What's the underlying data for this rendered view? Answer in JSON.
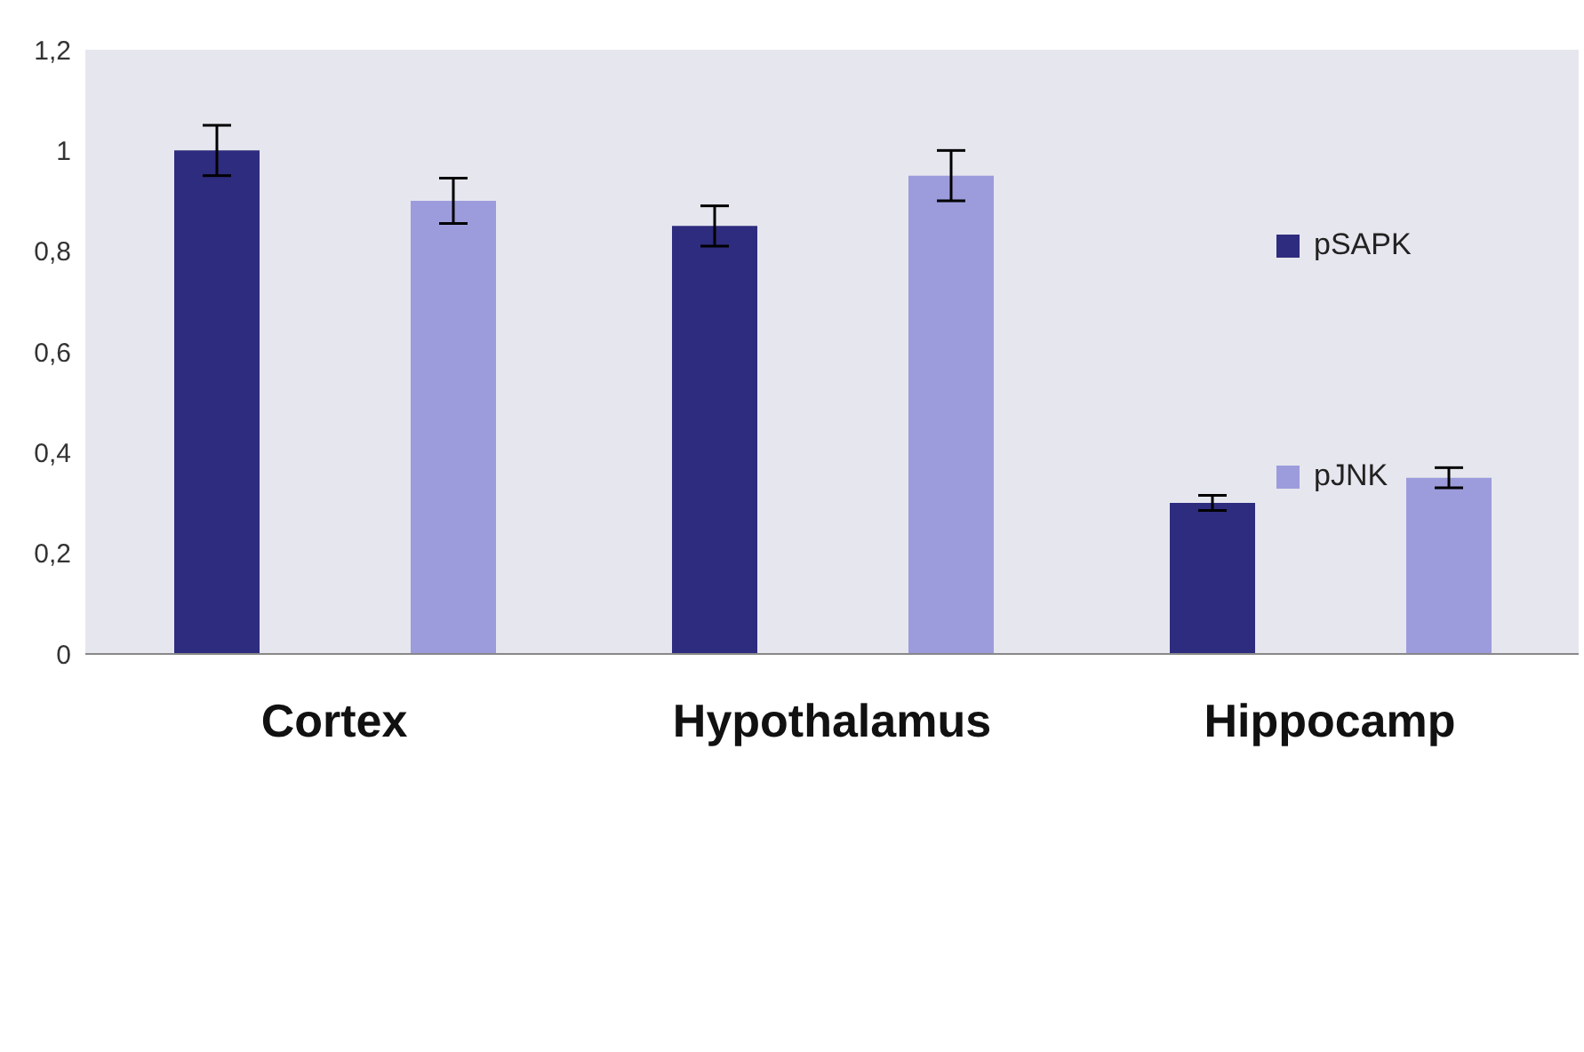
{
  "chart_data": {
    "type": "bar",
    "categories": [
      "Cortex",
      "Hypothalamus",
      "Hippocamp"
    ],
    "series": [
      {
        "name": "pSAPK",
        "color": "#2e2c7e",
        "values": [
          1.0,
          0.85,
          0.3
        ],
        "errors": [
          0.05,
          0.04,
          0.015
        ]
      },
      {
        "name": "pJNK",
        "color": "#9c9cdc",
        "values": [
          0.9,
          0.95,
          0.35
        ],
        "errors": [
          0.045,
          0.05,
          0.02
        ]
      }
    ],
    "ylim": [
      0,
      1.2
    ],
    "yticks": [
      {
        "value": 0,
        "label": "0"
      },
      {
        "value": 0.2,
        "label": "0,2"
      },
      {
        "value": 0.4,
        "label": "0,4"
      },
      {
        "value": 0.6,
        "label": "0,6"
      },
      {
        "value": 0.8,
        "label": "0,8"
      },
      {
        "value": 1,
        "label": "1"
      },
      {
        "value": 1.2,
        "label": "1,2"
      }
    ],
    "legend": "right"
  }
}
